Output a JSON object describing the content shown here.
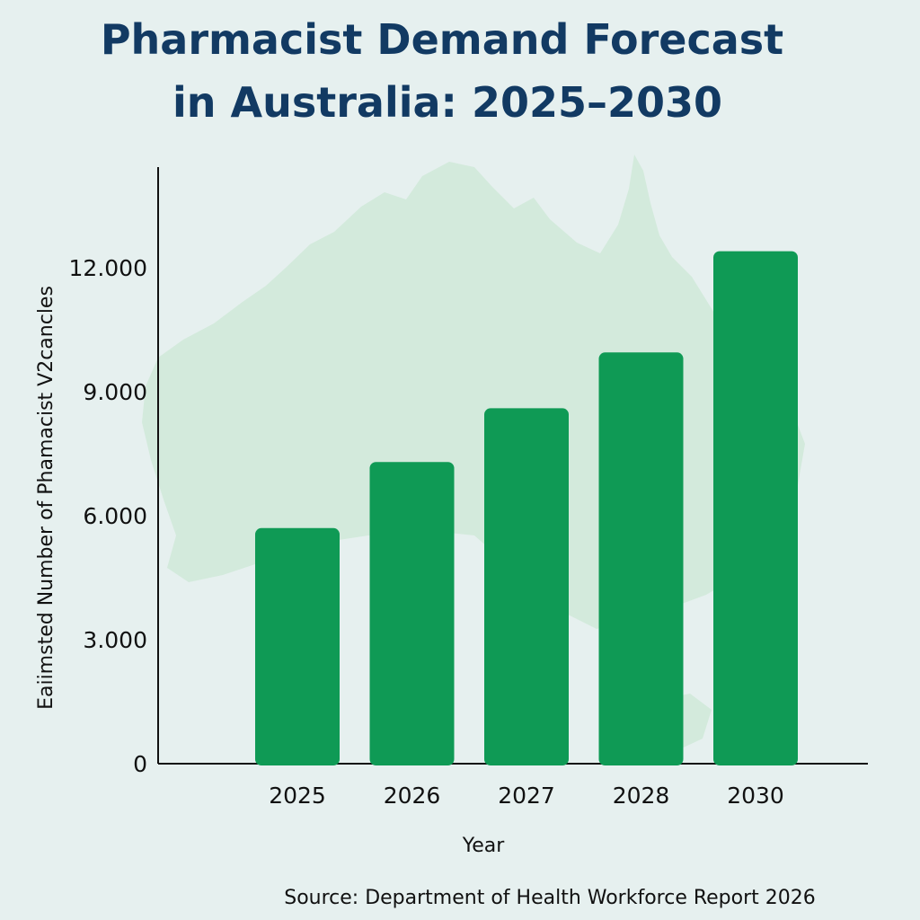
{
  "title": {
    "line1": "Pharmacist Demand Forecast",
    "line2": "in Australia: 2025–2030"
  },
  "source": "Source: Department of Health Workforce Report 2026",
  "background_icon": "australia-map-silhouette",
  "colors": {
    "background": "#e6f0ef",
    "map": "#d3eadc",
    "bar": "#0f9a55",
    "title": "#123a63",
    "axis": "#111111"
  },
  "chart_data": {
    "type": "bar",
    "categories": [
      "2025",
      "2026",
      "2027",
      "2028",
      "2030"
    ],
    "values": [
      5700,
      7300,
      8600,
      9950,
      12400
    ],
    "xlabel": "Year",
    "ylabel": "Eaiimsted Number of Phamacist V2cancles",
    "ylim": [
      0,
      13000
    ],
    "yticks": [
      0,
      3000,
      6000,
      9000,
      12000
    ],
    "ytick_labels": [
      "0",
      "3.000",
      "6.000",
      "9.000",
      "12.000"
    ],
    "grid": false,
    "legend": "none"
  }
}
